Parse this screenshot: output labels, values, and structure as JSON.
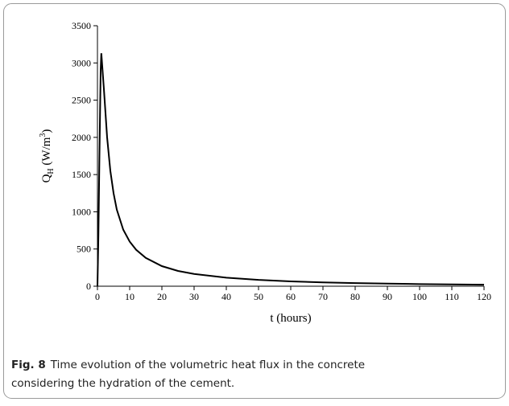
{
  "chart_data": {
    "type": "line",
    "xlabel": "t (hours)",
    "ylabel": [
      "Q",
      "H",
      " (W/m",
      "3",
      ")"
    ],
    "x": [
      0,
      0.3,
      0.6,
      1,
      1.2,
      2,
      3,
      4,
      5,
      6,
      8,
      10,
      12,
      15,
      20,
      25,
      30,
      40,
      50,
      60,
      70,
      80,
      90,
      100,
      110,
      120
    ],
    "series": [
      {
        "name": "Q_H",
        "color": "#000000",
        "values": [
          0,
          700,
          1700,
          2900,
          3130,
          2650,
          2000,
          1550,
          1250,
          1030,
          760,
          600,
          490,
          380,
          270,
          205,
          165,
          115,
          85,
          65,
          52,
          42,
          35,
          29,
          24,
          20
        ]
      }
    ],
    "xlim": [
      0,
      120
    ],
    "xticks": [
      0,
      10,
      20,
      30,
      40,
      50,
      60,
      70,
      80,
      90,
      100,
      110,
      120
    ],
    "ylim": [
      0,
      3500
    ],
    "yticks": [
      0,
      500,
      1000,
      1500,
      2000,
      2500,
      3000,
      3500
    ],
    "grid": false,
    "caption": {
      "label": "Fig. 8",
      "text": [
        "Time evolution of the volumetric heat flux in the concrete",
        "considering the hydration of the cement."
      ]
    }
  }
}
